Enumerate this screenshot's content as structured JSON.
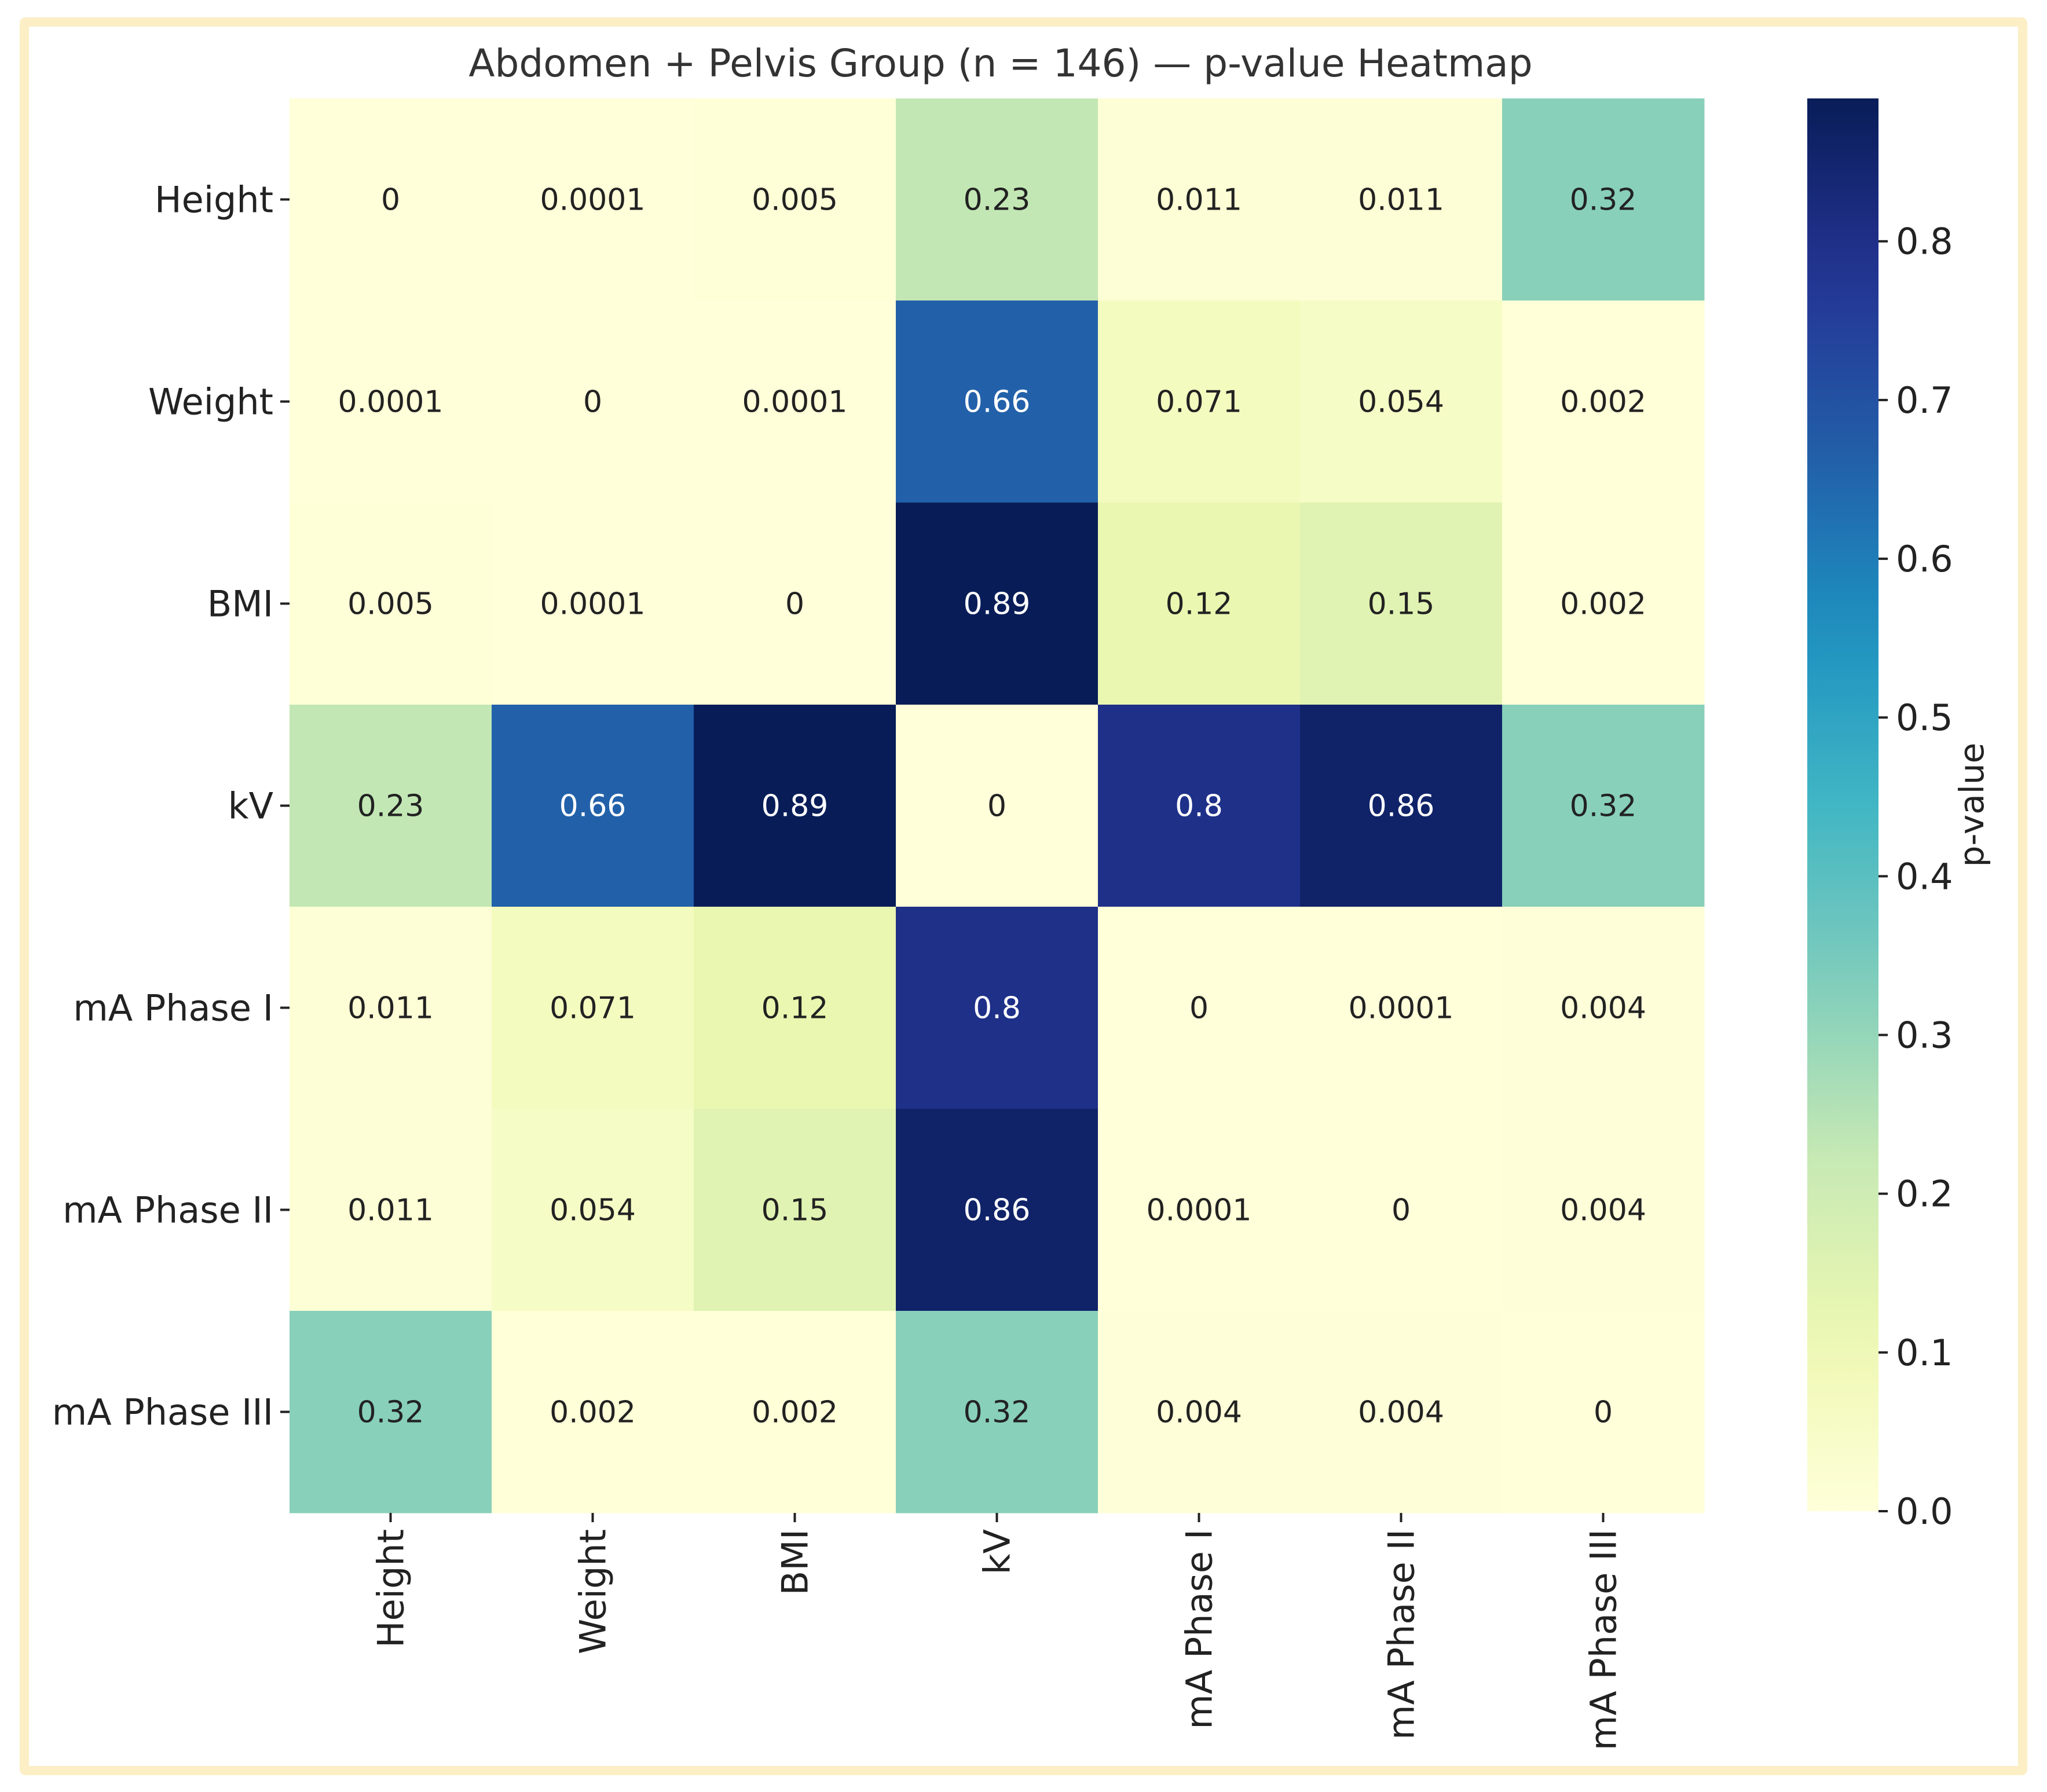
{
  "chart_data": {
    "type": "heatmap",
    "title": "Abdomen + Pelvis Group (n = 146) — p-value Heatmap",
    "row_labels": [
      "Height",
      "Weight",
      "BMI",
      "kV",
      "mA Phase I",
      "mA Phase II",
      "mA Phase III"
    ],
    "col_labels": [
      "Height",
      "Weight",
      "BMI",
      "kV",
      "mA Phase I",
      "mA Phase II",
      "mA Phase III"
    ],
    "values": [
      [
        0,
        0.0001,
        0.005,
        0.23,
        0.011,
        0.011,
        0.32
      ],
      [
        0.0001,
        0,
        0.0001,
        0.66,
        0.071,
        0.054,
        0.002
      ],
      [
        0.005,
        0.0001,
        0,
        0.89,
        0.12,
        0.15,
        0.002
      ],
      [
        0.23,
        0.66,
        0.89,
        0,
        0.8,
        0.86,
        0.32
      ],
      [
        0.011,
        0.071,
        0.12,
        0.8,
        0,
        0.0001,
        0.004
      ],
      [
        0.011,
        0.054,
        0.15,
        0.86,
        0.0001,
        0,
        0.004
      ],
      [
        0.32,
        0.002,
        0.002,
        0.32,
        0.004,
        0.004,
        0
      ]
    ],
    "annotations": [
      [
        "0",
        "0.0001",
        "0.005",
        "0.23",
        "0.011",
        "0.011",
        "0.32"
      ],
      [
        "0.0001",
        "0",
        "0.0001",
        "0.66",
        "0.071",
        "0.054",
        "0.002"
      ],
      [
        "0.005",
        "0.0001",
        "0",
        "0.89",
        "0.12",
        "0.15",
        "0.002"
      ],
      [
        "0.23",
        "0.66",
        "0.89",
        "0",
        "0.8",
        "0.86",
        "0.32"
      ],
      [
        "0.011",
        "0.071",
        "0.12",
        "0.8",
        "0",
        "0.0001",
        "0.004"
      ],
      [
        "0.011",
        "0.054",
        "0.15",
        "0.86",
        "0.0001",
        "0",
        "0.004"
      ],
      [
        "0.32",
        "0.002",
        "0.002",
        "0.32",
        "0.004",
        "0.004",
        "0"
      ]
    ],
    "colormap": "YlGnBu",
    "colorbar": {
      "label": "p-value",
      "vmin": 0,
      "vmax": 0.89,
      "ticks": [
        0.0,
        0.1,
        0.2,
        0.3,
        0.4,
        0.5,
        0.6,
        0.7,
        0.8
      ],
      "tick_labels": [
        "0.0",
        "0.1",
        "0.2",
        "0.3",
        "0.4",
        "0.5",
        "0.6",
        "0.7",
        "0.8"
      ]
    }
  },
  "colors": {
    "frame_border": "#fcefc6",
    "tick_color": "#222222",
    "text_dark": "#222222",
    "text_light": "#ffffff"
  }
}
